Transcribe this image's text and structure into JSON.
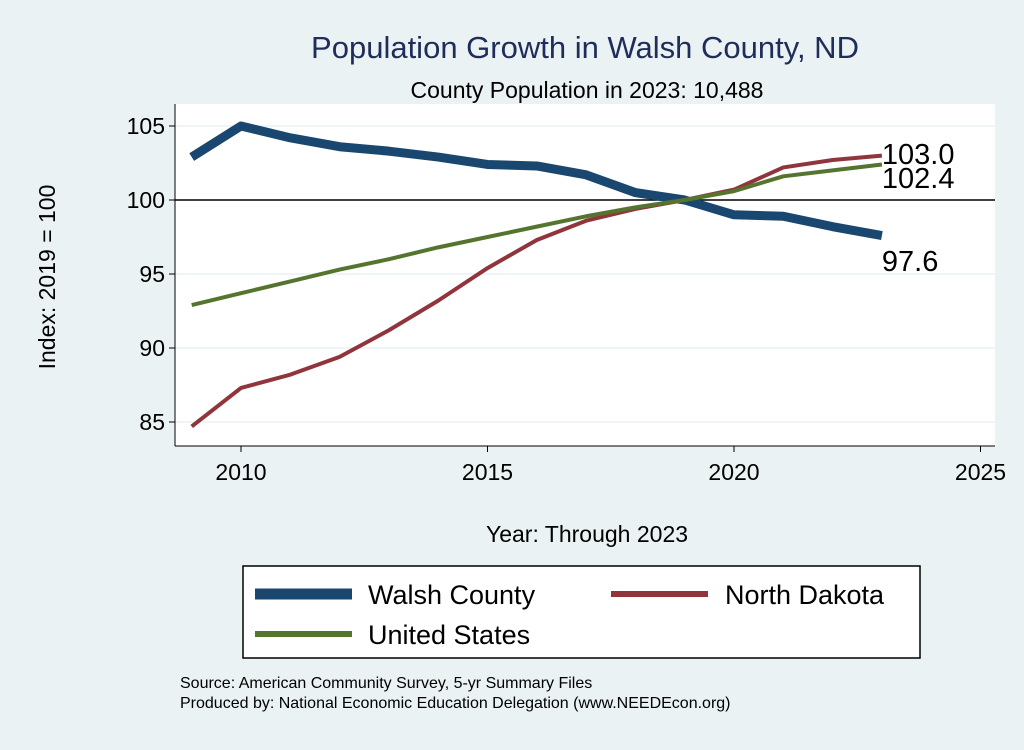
{
  "chart_data": {
    "type": "line",
    "title": "Population Growth in Walsh County, ND",
    "subtitle": "County Population in 2023: 10,488",
    "xlabel": "Year: Through 2023",
    "ylabel": "Index: 2019 = 100",
    "xlim": [
      2008.7,
      2025.3
    ],
    "ylim": [
      84.2,
      106.4
    ],
    "xticks": [
      2010,
      2015,
      2020,
      2025
    ],
    "yticks": [
      85,
      90,
      95,
      100,
      105
    ],
    "reference_line": 100,
    "x": [
      2009,
      2010,
      2011,
      2012,
      2013,
      2014,
      2015,
      2016,
      2017,
      2018,
      2019,
      2020,
      2021,
      2022,
      2023
    ],
    "series": [
      {
        "name": "Walsh  County",
        "color": "#1a476f",
        "width": 9,
        "end_label": "97.6",
        "values": [
          102.9,
          105.0,
          104.2,
          103.6,
          103.3,
          102.9,
          102.4,
          102.3,
          101.7,
          100.5,
          100.0,
          99.0,
          98.9,
          98.2,
          97.6
        ]
      },
      {
        "name": "North Dakota",
        "color": "#90353b",
        "width": 4,
        "end_label": "103.0",
        "values": [
          84.7,
          87.3,
          88.2,
          89.4,
          91.2,
          93.2,
          95.4,
          97.3,
          98.6,
          99.4,
          100.0,
          100.7,
          102.2,
          102.7,
          103.0
        ]
      },
      {
        "name": "United States",
        "color": "#55752f",
        "width": 4,
        "end_label": "102.4",
        "values": [
          92.9,
          93.7,
          94.5,
          95.3,
          96.0,
          96.8,
          97.5,
          98.2,
          98.9,
          99.5,
          100.0,
          100.6,
          101.6,
          102.0,
          102.4
        ]
      }
    ],
    "legend": {
      "placement": "bottom"
    },
    "grid": true
  },
  "notes": {
    "source": "Source: American Community Survey, 5-yr Summary Files",
    "produced_by": "Produced by: National Economic Education Delegation (www.NEEDEcon.org)"
  }
}
